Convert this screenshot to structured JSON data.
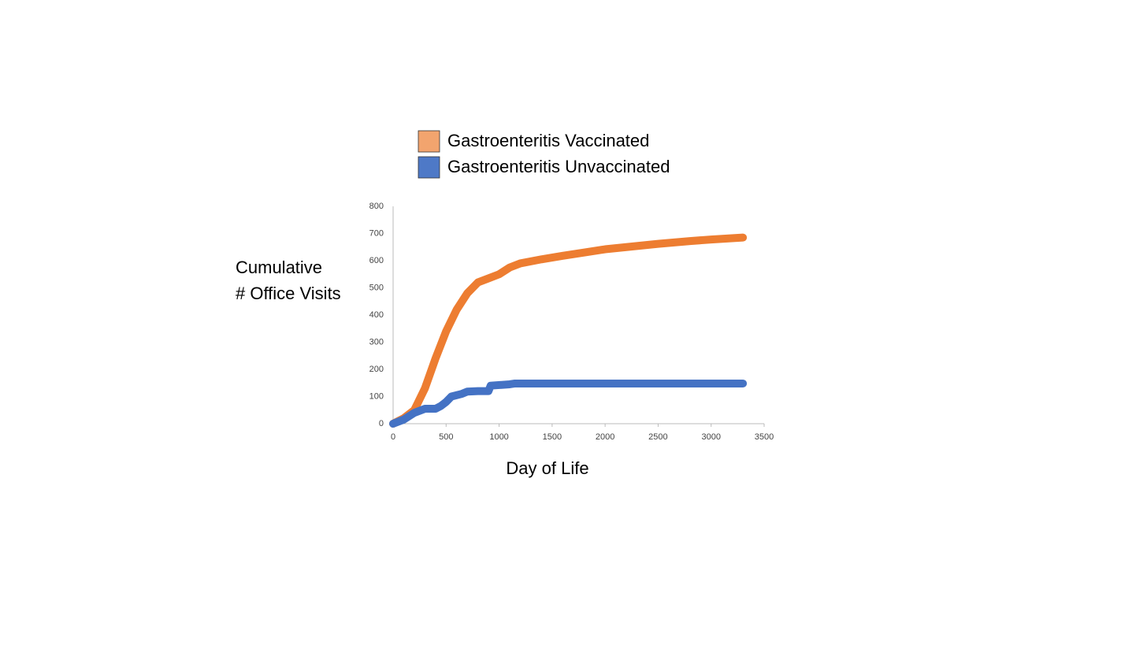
{
  "chart_data": {
    "type": "line",
    "ylabel": [
      "Cumulative",
      "# Office Visits"
    ],
    "xlabel": "Day of Life",
    "xlim": [
      0,
      3500
    ],
    "xticks": [
      0,
      500,
      1000,
      1500,
      2000,
      2500,
      3000,
      3500
    ],
    "ylim": [
      0,
      800
    ],
    "yticks": [
      0,
      100,
      200,
      300,
      400,
      500,
      600,
      700,
      800
    ],
    "grid": false,
    "series": [
      {
        "name": "Gastroenteritis Vaccinated",
        "color": "#ed7d31",
        "x": [
          0,
          100,
          200,
          300,
          400,
          500,
          600,
          700,
          800,
          900,
          1000,
          1100,
          1200,
          1400,
          1600,
          1800,
          2000,
          2200,
          2500,
          2800,
          3000,
          3300
        ],
        "values": [
          0,
          20,
          50,
          130,
          240,
          340,
          420,
          480,
          520,
          535,
          550,
          575,
          590,
          605,
          618,
          630,
          642,
          650,
          662,
          672,
          678,
          685
        ]
      },
      {
        "name": "Gastroenteritis Unvaccinated",
        "color": "#4472c4",
        "x": [
          0,
          100,
          200,
          300,
          400,
          450,
          500,
          550,
          650,
          700,
          800,
          900,
          920,
          1100,
          1150,
          3300
        ],
        "values": [
          0,
          15,
          40,
          55,
          55,
          65,
          80,
          100,
          110,
          118,
          120,
          120,
          140,
          145,
          148,
          148
        ]
      }
    ]
  }
}
